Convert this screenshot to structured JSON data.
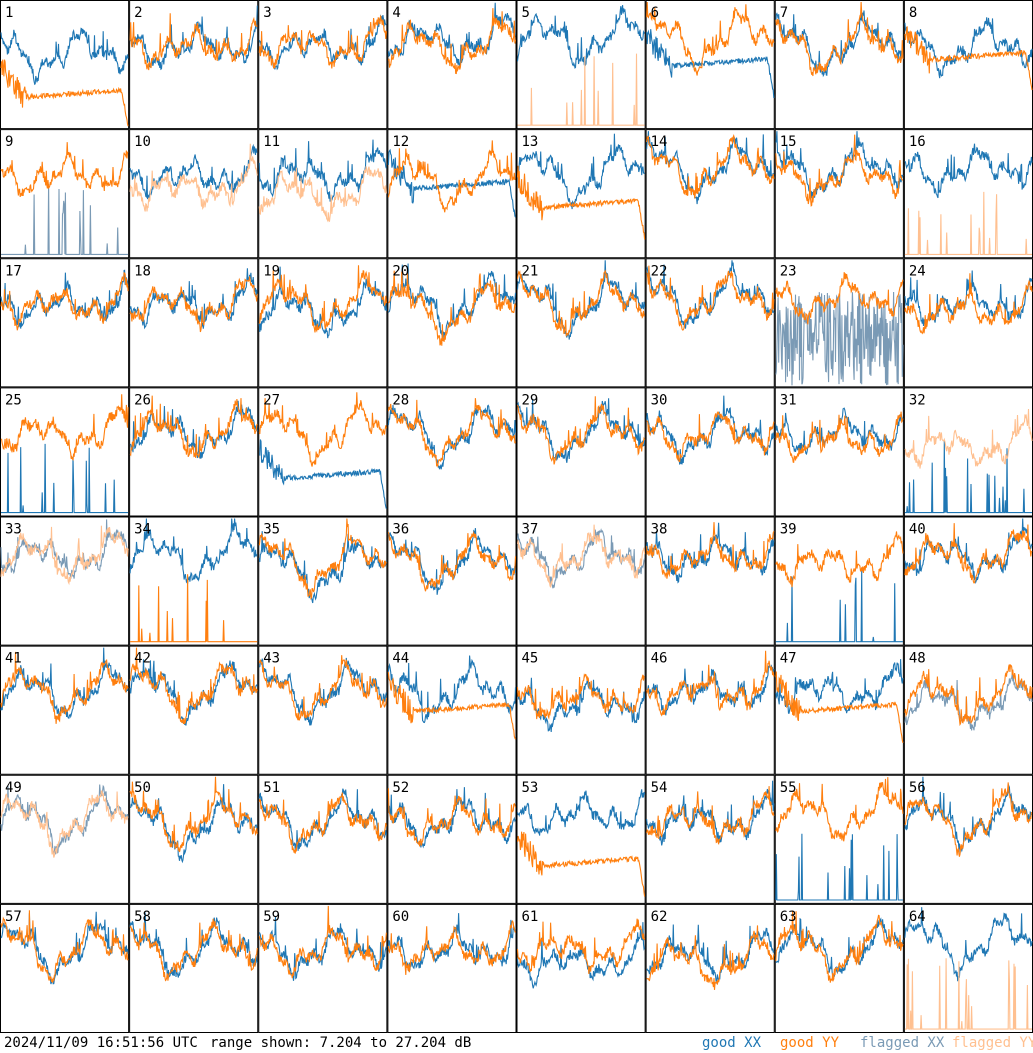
{
  "chart_data": {
    "type": "line",
    "panel_labels": [
      "1",
      "2",
      "3",
      "4",
      "5",
      "6",
      "7",
      "8",
      "9",
      "10",
      "11",
      "12",
      "13",
      "14",
      "15",
      "16",
      "17",
      "18",
      "19",
      "20",
      "21",
      "22",
      "23",
      "24",
      "25",
      "26",
      "27",
      "28",
      "29",
      "30",
      "31",
      "32",
      "33",
      "34",
      "35",
      "36",
      "37",
      "38",
      "39",
      "40",
      "41",
      "42",
      "43",
      "44",
      "45",
      "46",
      "47",
      "48",
      "49",
      "50",
      "51",
      "52",
      "53",
      "54",
      "55",
      "56",
      "57",
      "58",
      "59",
      "60",
      "61",
      "62",
      "63",
      "64"
    ],
    "ylim": [
      7.204,
      27.204
    ],
    "grid": "8x8",
    "legend_placement": "bottom-right",
    "series_styles": {
      "good XX": "#1f77b4",
      "good YY": "#ff7f0e",
      "flagged XX": "#7a9ab5",
      "flagged YY": "#ffc090"
    },
    "panels": [
      {
        "xx": "good",
        "yy": "good",
        "xx_level": 20,
        "yy_level": 14,
        "xx_kind": "normal",
        "yy_kind": "decay"
      },
      {
        "xx": "good",
        "yy": "good",
        "xx_level": 21,
        "yy_level": 21,
        "xx_kind": "normal",
        "yy_kind": "normal"
      },
      {
        "xx": "good",
        "yy": "good",
        "xx_level": 21,
        "yy_level": 21,
        "xx_kind": "normal",
        "yy_kind": "normal"
      },
      {
        "xx": "good",
        "yy": "good",
        "xx_level": 22,
        "yy_level": 21,
        "xx_kind": "normal",
        "yy_kind": "normal"
      },
      {
        "xx": "good",
        "yy": "flagged",
        "xx_level": 22,
        "yy_level": 8,
        "xx_kind": "normal",
        "yy_kind": "spike"
      },
      {
        "xx": "good",
        "yy": "good",
        "xx_level": 19,
        "yy_level": 22,
        "xx_kind": "decay",
        "yy_kind": "normal"
      },
      {
        "xx": "good",
        "yy": "good",
        "xx_level": 21,
        "yy_level": 21,
        "xx_kind": "normal",
        "yy_kind": "normal"
      },
      {
        "xx": "good",
        "yy": "good",
        "xx_level": 21,
        "yy_level": 20,
        "xx_kind": "normal",
        "yy_kind": "decay"
      },
      {
        "xx": "flagged",
        "yy": "good",
        "xx_level": 8,
        "yy_level": 21,
        "xx_kind": "spike",
        "yy_kind": "normal"
      },
      {
        "xx": "good",
        "yy": "flagged",
        "xx_level": 21,
        "yy_level": 19,
        "xx_kind": "normal",
        "yy_kind": "normal"
      },
      {
        "xx": "good",
        "yy": "flagged",
        "xx_level": 21,
        "yy_level": 18,
        "xx_kind": "normal",
        "yy_kind": "normal"
      },
      {
        "xx": "good",
        "yy": "good",
        "xx_level": 20,
        "yy_level": 20,
        "xx_kind": "decay",
        "yy_kind": "normal"
      },
      {
        "xx": "good",
        "yy": "good",
        "xx_level": 21,
        "yy_level": 17,
        "xx_kind": "normal",
        "yy_kind": "decay"
      },
      {
        "xx": "good",
        "yy": "good",
        "xx_level": 22,
        "yy_level": 22,
        "xx_kind": "normal",
        "yy_kind": "normal"
      },
      {
        "xx": "good",
        "yy": "good",
        "xx_level": 22,
        "yy_level": 21,
        "xx_kind": "normal",
        "yy_kind": "normal"
      },
      {
        "xx": "good",
        "yy": "flagged",
        "xx_level": 22,
        "yy_level": 8,
        "xx_kind": "normal",
        "yy_kind": "spike"
      },
      {
        "xx": "good",
        "yy": "good",
        "xx_level": 21,
        "yy_level": 21,
        "xx_kind": "normal",
        "yy_kind": "normal"
      },
      {
        "xx": "good",
        "yy": "good",
        "xx_level": 21,
        "yy_level": 21,
        "xx_kind": "normal",
        "yy_kind": "normal"
      },
      {
        "xx": "good",
        "yy": "good",
        "xx_level": 20,
        "yy_level": 21,
        "xx_kind": "normal",
        "yy_kind": "normal"
      },
      {
        "xx": "good",
        "yy": "good",
        "xx_level": 21,
        "yy_level": 20,
        "xx_kind": "normal",
        "yy_kind": "normal"
      },
      {
        "xx": "good",
        "yy": "good",
        "xx_level": 21,
        "yy_level": 21,
        "xx_kind": "normal",
        "yy_kind": "normal"
      },
      {
        "xx": "good",
        "yy": "good",
        "xx_level": 22,
        "yy_level": 22,
        "xx_kind": "normal",
        "yy_kind": "normal"
      },
      {
        "xx": "flagged",
        "yy": "good",
        "xx_level": 13,
        "yy_level": 22,
        "xx_kind": "noisy",
        "yy_kind": "normal"
      },
      {
        "xx": "good",
        "yy": "good",
        "xx_level": 21,
        "yy_level": 20,
        "xx_kind": "normal",
        "yy_kind": "normal"
      },
      {
        "xx": "good",
        "yy": "good",
        "xx_level": 8,
        "yy_level": 21,
        "xx_kind": "spike",
        "yy_kind": "normal"
      },
      {
        "xx": "good",
        "yy": "good",
        "xx_level": 21,
        "yy_level": 21,
        "xx_kind": "normal",
        "yy_kind": "normal"
      },
      {
        "xx": "good",
        "yy": "good",
        "xx_level": 15,
        "yy_level": 21,
        "xx_kind": "decay",
        "yy_kind": "normal"
      },
      {
        "xx": "good",
        "yy": "good",
        "xx_level": 21,
        "yy_level": 21,
        "xx_kind": "normal",
        "yy_kind": "normal"
      },
      {
        "xx": "good",
        "yy": "good",
        "xx_level": 21,
        "yy_level": 21,
        "xx_kind": "normal",
        "yy_kind": "normal"
      },
      {
        "xx": "good",
        "yy": "good",
        "xx_level": 21,
        "yy_level": 21,
        "xx_kind": "normal",
        "yy_kind": "normal"
      },
      {
        "xx": "good",
        "yy": "good",
        "xx_level": 21,
        "yy_level": 20,
        "xx_kind": "normal",
        "yy_kind": "normal"
      },
      {
        "xx": "good",
        "yy": "flagged",
        "xx_level": 8,
        "yy_level": 19,
        "xx_kind": "spike",
        "yy_kind": "normal"
      },
      {
        "xx": "flagged",
        "yy": "flagged",
        "xx_level": 22,
        "yy_level": 22,
        "xx_kind": "normal",
        "yy_kind": "normal"
      },
      {
        "xx": "good",
        "yy": "good",
        "xx_level": 22,
        "yy_level": 8,
        "xx_kind": "normal",
        "yy_kind": "spike"
      },
      {
        "xx": "good",
        "yy": "good",
        "xx_level": 20,
        "yy_level": 21,
        "xx_kind": "normal",
        "yy_kind": "normal"
      },
      {
        "xx": "good",
        "yy": "good",
        "xx_level": 21,
        "yy_level": 21,
        "xx_kind": "normal",
        "yy_kind": "normal"
      },
      {
        "xx": "flagged",
        "yy": "flagged",
        "xx_level": 22,
        "yy_level": 22,
        "xx_kind": "normal",
        "yy_kind": "normal"
      },
      {
        "xx": "good",
        "yy": "good",
        "xx_level": 22,
        "yy_level": 22,
        "xx_kind": "normal",
        "yy_kind": "normal"
      },
      {
        "xx": "good",
        "yy": "good",
        "xx_level": 8,
        "yy_level": 21,
        "xx_kind": "spike",
        "yy_kind": "normal"
      },
      {
        "xx": "good",
        "yy": "good",
        "xx_level": 22,
        "yy_level": 22,
        "xx_kind": "normal",
        "yy_kind": "normal"
      },
      {
        "xx": "good",
        "yy": "good",
        "xx_level": 21,
        "yy_level": 21,
        "xx_kind": "normal",
        "yy_kind": "normal"
      },
      {
        "xx": "good",
        "yy": "good",
        "xx_level": 21,
        "yy_level": 21,
        "xx_kind": "normal",
        "yy_kind": "normal"
      },
      {
        "xx": "good",
        "yy": "good",
        "xx_level": 21,
        "yy_level": 21,
        "xx_kind": "normal",
        "yy_kind": "normal"
      },
      {
        "xx": "good",
        "yy": "good",
        "xx_level": 21,
        "yy_level": 19,
        "xx_kind": "normal",
        "yy_kind": "decay"
      },
      {
        "xx": "good",
        "yy": "good",
        "xx_level": 19,
        "yy_level": 20,
        "xx_kind": "normal",
        "yy_kind": "normal"
      },
      {
        "xx": "good",
        "yy": "good",
        "xx_level": 21,
        "yy_level": 21,
        "xx_kind": "normal",
        "yy_kind": "normal"
      },
      {
        "xx": "good",
        "yy": "good",
        "xx_level": 21,
        "yy_level": 19,
        "xx_kind": "normal",
        "yy_kind": "decay"
      },
      {
        "xx": "flagged",
        "yy": "good",
        "xx_level": 19,
        "yy_level": 20,
        "xx_kind": "normal",
        "yy_kind": "normal"
      },
      {
        "xx": "flagged",
        "yy": "flagged",
        "xx_level": 21,
        "yy_level": 21,
        "xx_kind": "normal",
        "yy_kind": "normal"
      },
      {
        "xx": "good",
        "yy": "good",
        "xx_level": 20,
        "yy_level": 21,
        "xx_kind": "normal",
        "yy_kind": "normal"
      },
      {
        "xx": "good",
        "yy": "good",
        "xx_level": 21,
        "yy_level": 21,
        "xx_kind": "normal",
        "yy_kind": "normal"
      },
      {
        "xx": "good",
        "yy": "good",
        "xx_level": 21,
        "yy_level": 21,
        "xx_kind": "normal",
        "yy_kind": "normal"
      },
      {
        "xx": "good",
        "yy": "good",
        "xx_level": 22,
        "yy_level": 15,
        "xx_kind": "normal",
        "yy_kind": "decay"
      },
      {
        "xx": "good",
        "yy": "good",
        "xx_level": 21,
        "yy_level": 21,
        "xx_kind": "normal",
        "yy_kind": "normal"
      },
      {
        "xx": "good",
        "yy": "good",
        "xx_level": 8,
        "yy_level": 22,
        "xx_kind": "spike",
        "yy_kind": "normal"
      },
      {
        "xx": "good",
        "yy": "good",
        "xx_level": 21,
        "yy_level": 21,
        "xx_kind": "normal",
        "yy_kind": "normal"
      },
      {
        "xx": "good",
        "yy": "good",
        "xx_level": 21,
        "yy_level": 21,
        "xx_kind": "normal",
        "yy_kind": "normal"
      },
      {
        "xx": "good",
        "yy": "good",
        "xx_level": 21,
        "yy_level": 21,
        "xx_kind": "normal",
        "yy_kind": "normal"
      },
      {
        "xx": "good",
        "yy": "good",
        "xx_level": 21,
        "yy_level": 21,
        "xx_kind": "normal",
        "yy_kind": "normal"
      },
      {
        "xx": "good",
        "yy": "good",
        "xx_level": 21,
        "yy_level": 21,
        "xx_kind": "normal",
        "yy_kind": "normal"
      },
      {
        "xx": "good",
        "yy": "good",
        "xx_level": 19,
        "yy_level": 21,
        "xx_kind": "normal",
        "yy_kind": "normal"
      },
      {
        "xx": "good",
        "yy": "good",
        "xx_level": 20,
        "yy_level": 19,
        "xx_kind": "normal",
        "yy_kind": "normal"
      },
      {
        "xx": "good",
        "yy": "good",
        "xx_level": 21,
        "yy_level": 21,
        "xx_kind": "normal",
        "yy_kind": "normal"
      },
      {
        "xx": "good",
        "yy": "flagged",
        "xx_level": 22,
        "yy_level": 8,
        "xx_kind": "normal",
        "yy_kind": "spike"
      }
    ]
  },
  "footer": {
    "timestamp": "2024/11/09 16:51:56 UTC",
    "range": "range shown: 7.204 to 27.204 dB",
    "legend": [
      {
        "label": "good XX",
        "color": "#1f77b4"
      },
      {
        "label": "good YY",
        "color": "#ff7f0e"
      },
      {
        "label": "flagged XX",
        "color": "#7a9ab5"
      },
      {
        "label": "flagged YY",
        "color": "#ffc090"
      }
    ]
  }
}
